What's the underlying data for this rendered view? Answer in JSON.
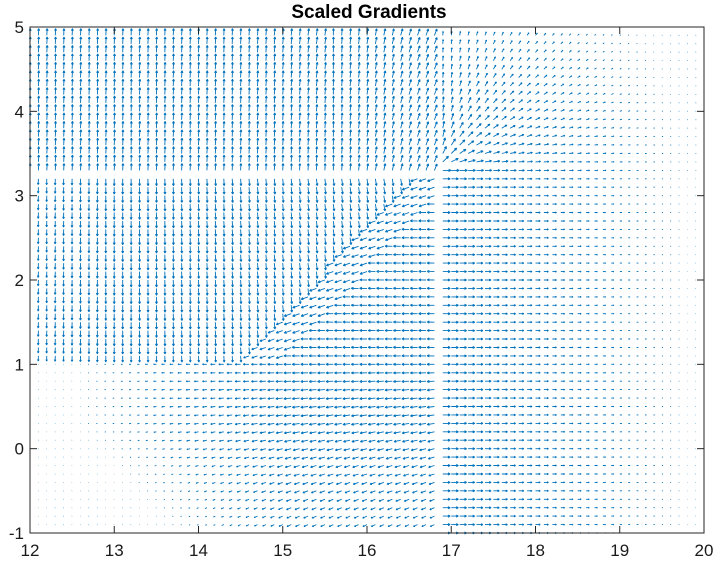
{
  "chart_data": {
    "type": "quiver",
    "title": "Scaled Gradients",
    "xlabel": "",
    "ylabel": "",
    "xlim": [
      12,
      20
    ],
    "ylim": [
      -1,
      5
    ],
    "x_ticks": [
      "12",
      "13",
      "14",
      "15",
      "16",
      "17",
      "18",
      "19",
      "20"
    ],
    "y_ticks": [
      "-1",
      "0",
      "1",
      "2",
      "3",
      "4",
      "5"
    ],
    "grid": false,
    "color": "#0072BD",
    "field": {
      "x_step": 0.1,
      "y_step": 0.1,
      "scale_note": "arrow lengths scaled to local gradient magnitude",
      "features": [
        {
          "name": "ridge_horizontal",
          "y": 3.3,
          "x_from": 12,
          "x_to": 16.7
        },
        {
          "name": "ridge_vertical",
          "x": 16.8,
          "y_from": -1,
          "y_to": 3.3
        },
        {
          "name": "diagonal_separatrix",
          "from": [
            14.5,
            1.0
          ],
          "to": [
            16.6,
            3.3
          ]
        }
      ]
    }
  }
}
